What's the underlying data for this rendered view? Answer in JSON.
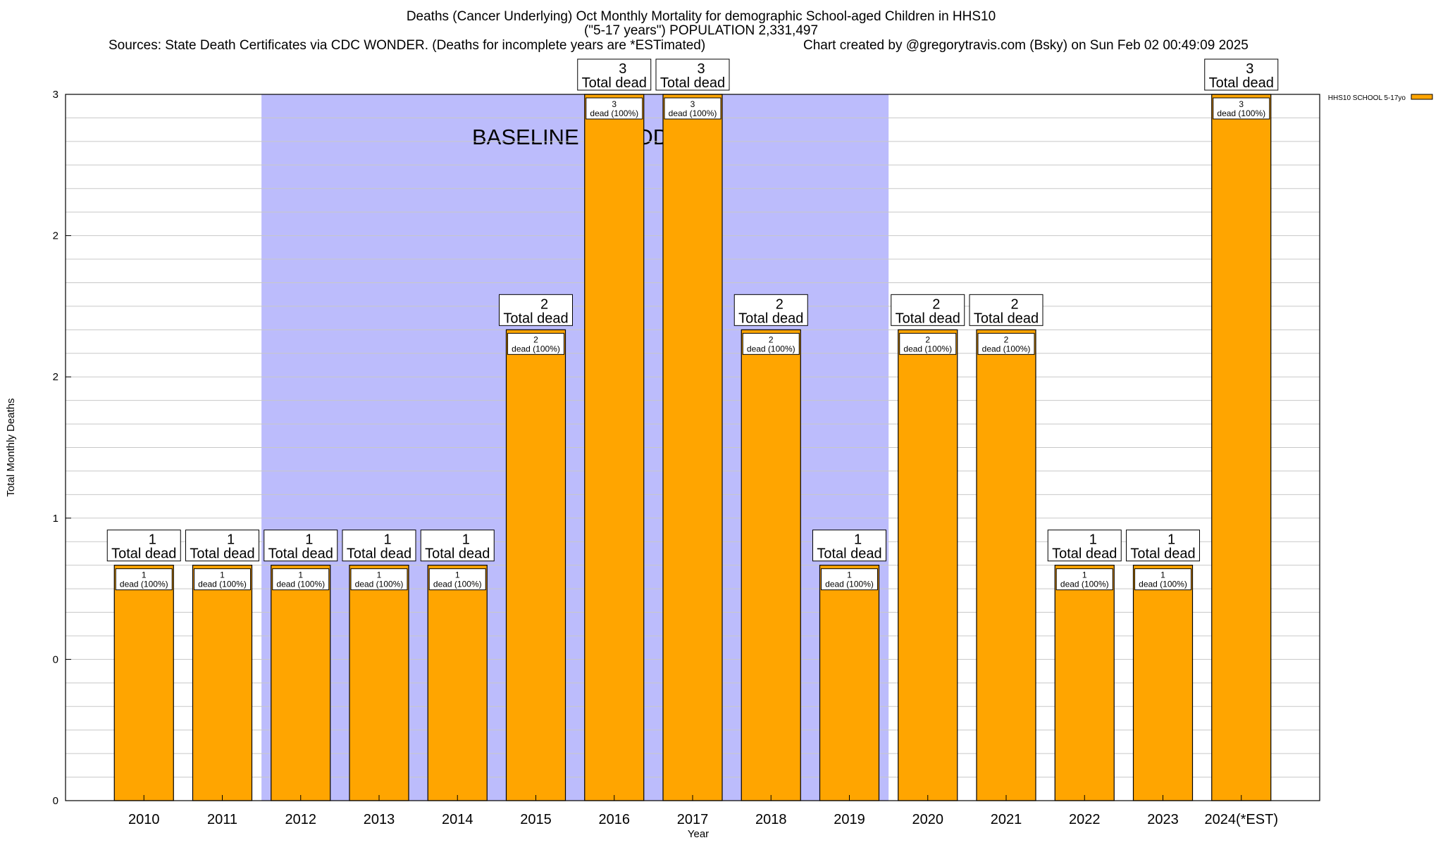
{
  "titles": {
    "line1": "Deaths (Cancer Underlying) Oct Monthly Mortality for demographic School-aged Children in HHS10",
    "line2": "(\"5-17 years\") POPULATION 2,331,497",
    "line3": "Sources: State Death Certificates via CDC WONDER. (Deaths for incomplete years are *ESTimated)",
    "credit": "Chart created by @gregorytravis.com (Bsky) on Sun Feb 02 00:49:09 2025"
  },
  "colors": {
    "bar": "#ffa500",
    "baseline_band": "#bcbcfc",
    "grid": "#c8c8c8"
  },
  "chart_data": {
    "type": "bar",
    "xlabel": "Year",
    "ylabel": "Total Monthly Deaths",
    "ylim": [
      0,
      3
    ],
    "y_tick_labels": [
      "0",
      "0",
      "1",
      "2",
      "2",
      "3"
    ],
    "categories": [
      "2010",
      "2011",
      "2012",
      "2013",
      "2014",
      "2015",
      "2016",
      "2017",
      "2018",
      "2019",
      "2020",
      "2021",
      "2022",
      "2023",
      "2024(*EST)"
    ],
    "series": [
      {
        "name": "HHS10 SCHOOL 5-17yo",
        "values": [
          1,
          1,
          1,
          1,
          1,
          2,
          3,
          3,
          2,
          1,
          2,
          2,
          1,
          1,
          3
        ]
      }
    ],
    "total_label_suffix": "Total dead",
    "bar_label_suffix": "dead (100%)",
    "baseline": {
      "label": "BASELINE PERIOD",
      "start": "2012",
      "end": "2019"
    },
    "legend_position": "top-right",
    "grid": true
  }
}
